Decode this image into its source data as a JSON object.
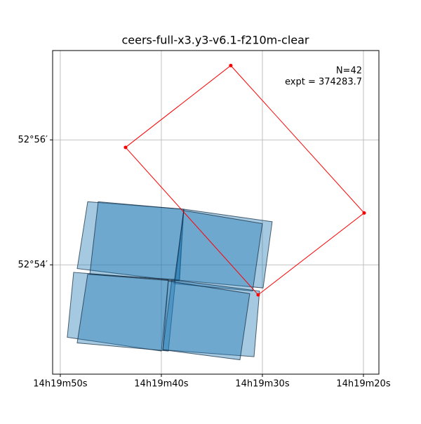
{
  "chart_data": {
    "type": "footprint",
    "title": "ceers-full-x3.y3-v6.1-f210m-clear",
    "annotations": [
      "N=42",
      "expt = 374283.7"
    ],
    "xlim": [
      50.76,
      18.47
    ],
    "ylim": [
      52.25,
      57.43
    ],
    "xticks": [
      {
        "value": 50,
        "label": "14h19m50s"
      },
      {
        "value": 40,
        "label": "14h19m40s"
      },
      {
        "value": 30,
        "label": "14h19m30s"
      },
      {
        "value": 20,
        "label": "14h19m20s"
      }
    ],
    "yticks": [
      {
        "value": 54,
        "label": "52°54′"
      },
      {
        "value": 56,
        "label": "52°56′"
      }
    ],
    "grid": true,
    "footprint_color": "#1f77b4",
    "footprints": [
      {
        "x": [
          47.29,
          37.78,
          38.26,
          48.33
        ],
        "y": [
          55.01,
          54.89,
          53.74,
          53.94
        ]
      },
      {
        "x": [
          46.25,
          37.78,
          38.19,
          47.08
        ],
        "y": [
          55.01,
          54.89,
          53.76,
          53.85
        ]
      },
      {
        "x": [
          37.78,
          29.03,
          29.93,
          38.61
        ],
        "y": [
          54.89,
          54.69,
          53.63,
          53.76
        ]
      },
      {
        "x": [
          37.78,
          30.0,
          30.97,
          38.75
        ],
        "y": [
          54.87,
          54.66,
          53.58,
          53.7
        ]
      },
      {
        "x": [
          48.68,
          39.31,
          40.0,
          49.31
        ],
        "y": [
          53.88,
          53.76,
          52.62,
          52.84
        ]
      },
      {
        "x": [
          47.29,
          38.61,
          39.31,
          48.33
        ],
        "y": [
          53.85,
          53.74,
          52.62,
          52.75
        ]
      },
      {
        "x": [
          38.96,
          30.28,
          30.83,
          39.86
        ],
        "y": [
          53.76,
          53.58,
          52.53,
          52.64
        ]
      },
      {
        "x": [
          39.31,
          31.25,
          32.22,
          39.86
        ],
        "y": [
          53.74,
          53.54,
          52.48,
          52.64
        ]
      }
    ],
    "outline": {
      "color": "#ff0000",
      "x": [
        43.54,
        33.13,
        19.93,
        30.42
      ],
      "y": [
        55.88,
        57.19,
        54.83,
        53.52
      ]
    }
  }
}
